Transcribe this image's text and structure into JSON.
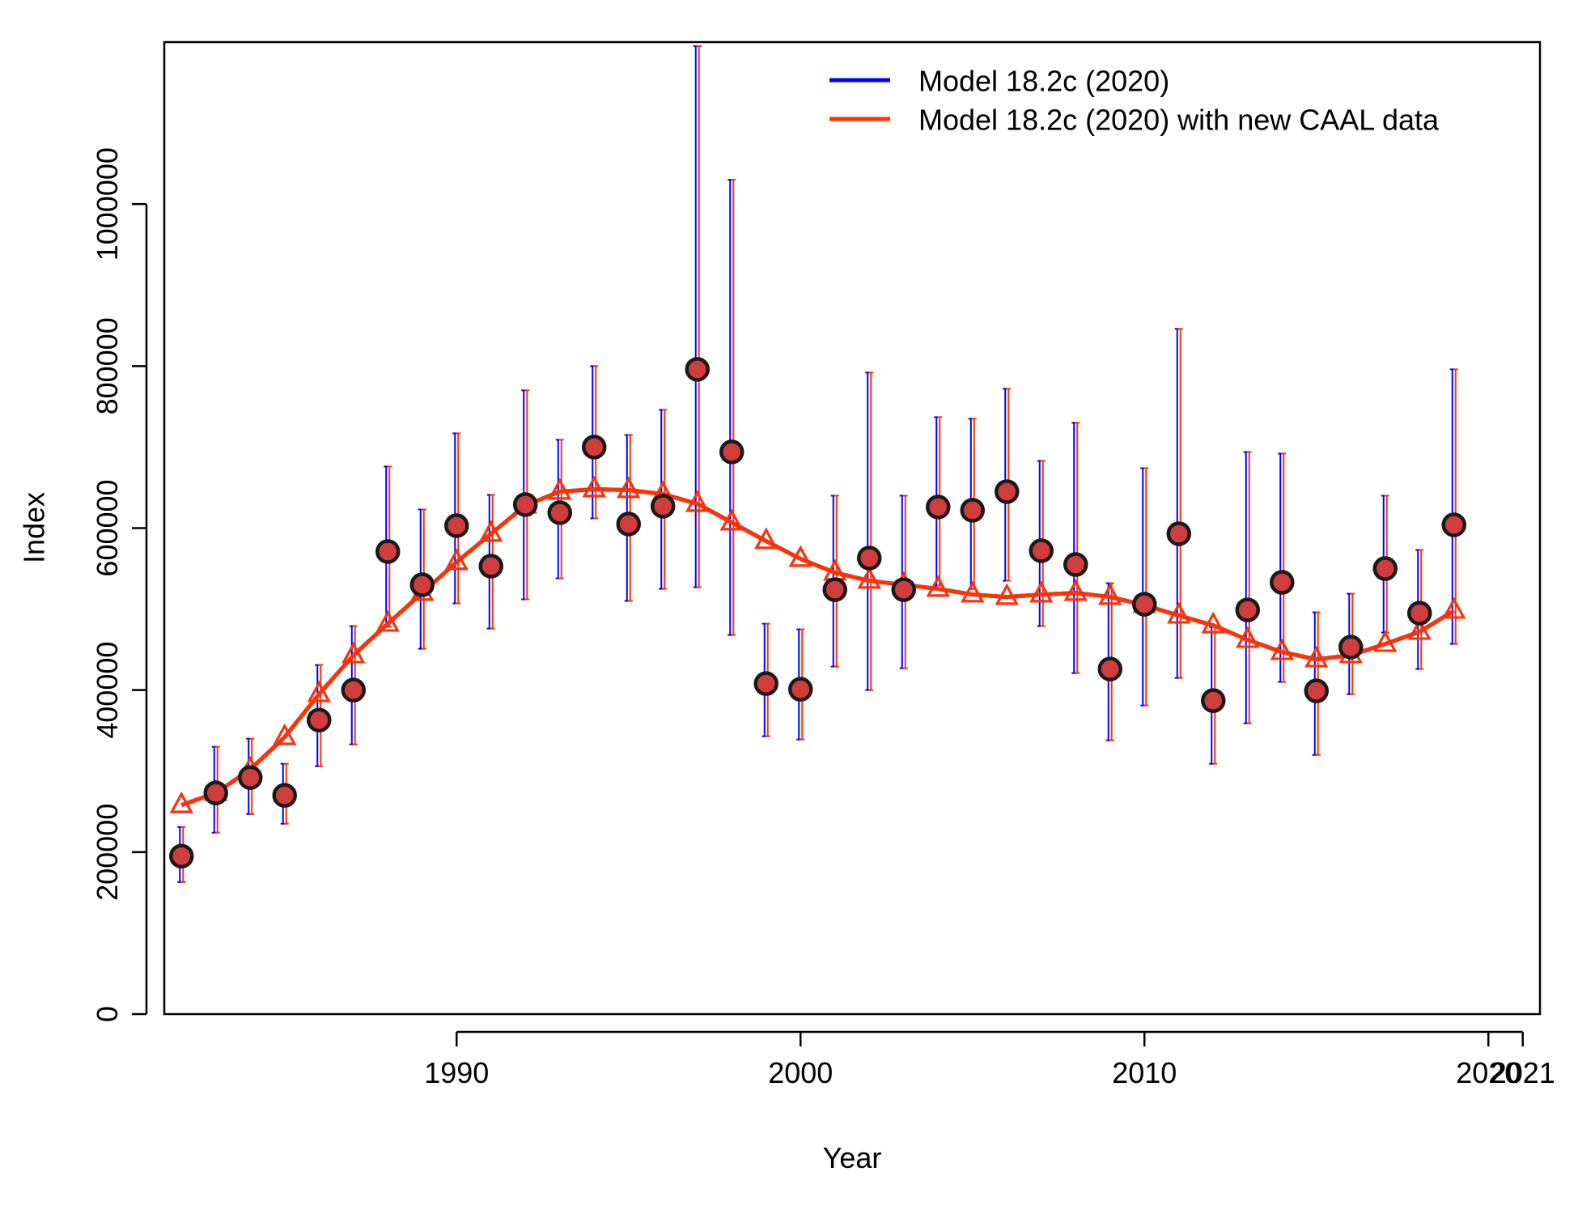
{
  "chart_data": {
    "type": "line",
    "xlabel": "Year",
    "ylabel": "Index",
    "xlim": [
      1981.5,
      2021.5
    ],
    "ylim": [
      0,
      1200000
    ],
    "x_ticks": [
      1990,
      2000,
      2010,
      2020,
      2021
    ],
    "x_tick_labels": [
      "1990",
      "2000",
      "2010",
      "2020",
      "2021"
    ],
    "y_ticks": [
      0,
      200000,
      400000,
      600000,
      800000,
      1000000
    ],
    "y_tick_labels": [
      "0",
      "200000",
      "400000",
      "600000",
      "800000",
      "1000000"
    ],
    "legend_position": "top-right",
    "colors": {
      "model_2020": "#0000ff",
      "model_caal": "#ff3300",
      "observed_fill": "#d13d3d",
      "observed_edge": "#1a1a1a"
    },
    "series": [
      {
        "name": "Model 18.2c (2020)",
        "color": "#0000ff",
        "x": [
          1982,
          1983,
          1984,
          1985,
          1986,
          1987,
          1988,
          1989,
          1990,
          1991,
          1992,
          1993,
          1994,
          1995,
          1996,
          1997,
          1998,
          1999,
          2000,
          2001,
          2002,
          2003,
          2004,
          2005,
          2006,
          2007,
          2008,
          2009,
          2010,
          2011,
          2012,
          2013,
          2014,
          2015,
          2016,
          2017,
          2018,
          2019
        ],
        "values": [
          258000,
          273000,
          302000,
          342000,
          395000,
          443000,
          482000,
          520000,
          558000,
          593000,
          628000,
          645000,
          648000,
          647000,
          642000,
          630000,
          607000,
          584000,
          562000,
          545000,
          535000,
          530000,
          525000,
          518000,
          515000,
          518000,
          520000,
          515000,
          505000,
          492000,
          480000,
          462000,
          447000,
          438000,
          443000,
          457000,
          472000,
          498000
        ]
      },
      {
        "name": "Model 18.2c (2020) with new CAAL data",
        "color": "#ff3300",
        "x": [
          1982,
          1983,
          1984,
          1985,
          1986,
          1987,
          1988,
          1989,
          1990,
          1991,
          1992,
          1993,
          1994,
          1995,
          1996,
          1997,
          1998,
          1999,
          2000,
          2001,
          2002,
          2003,
          2004,
          2005,
          2006,
          2007,
          2008,
          2009,
          2010,
          2011,
          2012,
          2013,
          2014,
          2015,
          2016,
          2017,
          2018,
          2019
        ],
        "values": [
          258000,
          273000,
          302000,
          342000,
          395000,
          443000,
          482000,
          520000,
          558000,
          593000,
          628000,
          645000,
          648000,
          647000,
          642000,
          630000,
          607000,
          584000,
          562000,
          545000,
          535000,
          530000,
          525000,
          518000,
          515000,
          518000,
          520000,
          515000,
          505000,
          492000,
          480000,
          462000,
          447000,
          438000,
          443000,
          457000,
          472000,
          498000
        ]
      }
    ],
    "observed": {
      "x": [
        1982,
        1983,
        1984,
        1985,
        1986,
        1987,
        1988,
        1989,
        1990,
        1991,
        1992,
        1993,
        1994,
        1995,
        1996,
        1997,
        1998,
        1999,
        2000,
        2001,
        2002,
        2003,
        2004,
        2005,
        2006,
        2007,
        2008,
        2009,
        2010,
        2011,
        2012,
        2013,
        2014,
        2015,
        2016,
        2017,
        2018,
        2019
      ],
      "values": [
        195000,
        273000,
        292000,
        270000,
        363000,
        400000,
        571000,
        530000,
        603000,
        553000,
        629000,
        619000,
        700000,
        605000,
        627000,
        796000,
        694000,
        408000,
        401000,
        524000,
        563000,
        524000,
        626000,
        622000,
        645000,
        572000,
        555000,
        426000,
        506000,
        593000,
        387000,
        499000,
        533000,
        399000,
        453000,
        550000,
        495000,
        604000
      ],
      "lower": [
        163000,
        224000,
        247000,
        235000,
        306000,
        333000,
        478000,
        451000,
        507000,
        476000,
        512000,
        538000,
        612000,
        510000,
        525000,
        527000,
        468000,
        343000,
        339000,
        429000,
        400000,
        427000,
        529000,
        525000,
        535000,
        479000,
        421000,
        338000,
        381000,
        415000,
        309000,
        359000,
        410000,
        320000,
        395000,
        471000,
        426000,
        457000
      ],
      "upper": [
        231000,
        330000,
        340000,
        309000,
        431000,
        479000,
        676000,
        623000,
        717000,
        641000,
        770000,
        709000,
        800000,
        715000,
        746000,
        1195000,
        1030000,
        482000,
        475000,
        640000,
        792000,
        640000,
        737000,
        735000,
        772000,
        683000,
        730000,
        532000,
        674000,
        846000,
        478000,
        694000,
        692000,
        496000,
        519000,
        640000,
        573000,
        796000
      ]
    }
  }
}
